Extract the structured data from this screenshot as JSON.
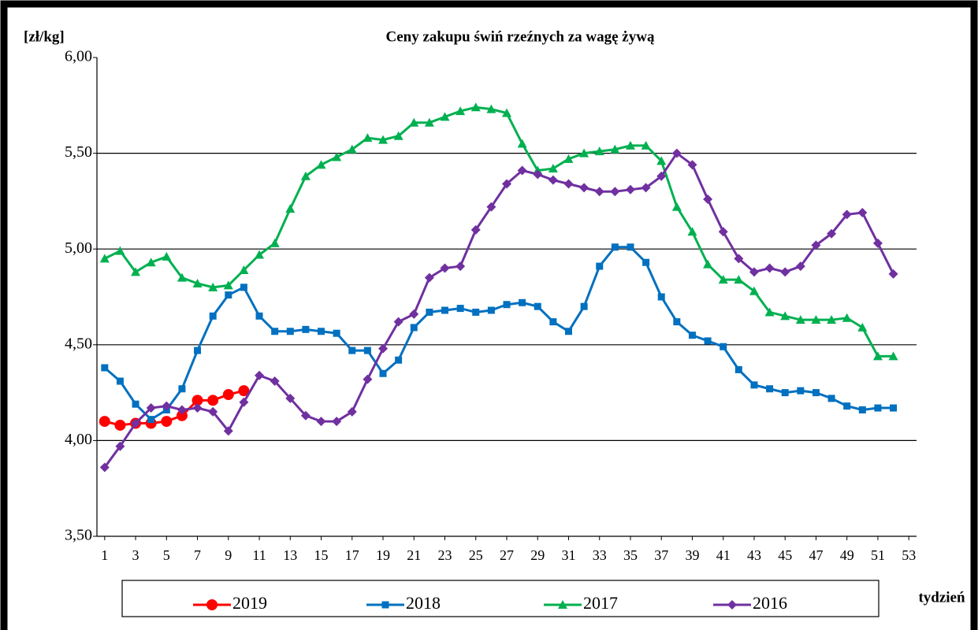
{
  "chart_data": {
    "type": "line",
    "title": "Ceny zakupu świń rzeźnych  za wagę żywą",
    "y_label": "[zł/kg]",
    "x_label": "tydzień",
    "x": [
      1,
      2,
      3,
      4,
      5,
      6,
      7,
      8,
      9,
      10,
      11,
      12,
      13,
      14,
      15,
      16,
      17,
      18,
      19,
      20,
      21,
      22,
      23,
      24,
      25,
      26,
      27,
      28,
      29,
      30,
      31,
      32,
      33,
      34,
      35,
      36,
      37,
      38,
      39,
      40,
      41,
      42,
      43,
      44,
      45,
      46,
      47,
      48,
      49,
      50,
      51,
      52
    ],
    "xlim": [
      0.5,
      53.5
    ],
    "xticks": [
      1,
      3,
      5,
      7,
      9,
      11,
      13,
      15,
      17,
      19,
      21,
      23,
      25,
      27,
      29,
      31,
      33,
      35,
      37,
      39,
      41,
      43,
      45,
      47,
      49,
      51,
      53
    ],
    "ylim": [
      3.5,
      6
    ],
    "yticks": [
      {
        "value": 3.5,
        "label": "3,50"
      },
      {
        "value": 4,
        "label": "4,00"
      },
      {
        "value": 4.5,
        "label": "4,50"
      },
      {
        "value": 5,
        "label": "5,00"
      },
      {
        "value": 5.5,
        "label": "5,50"
      },
      {
        "value": 6,
        "label": "6,00"
      }
    ],
    "grid": true,
    "legend": "bottom",
    "series": [
      {
        "name": "2019",
        "color": "#ff0000",
        "marker": "circle",
        "values": [
          4.1,
          4.08,
          4.09,
          4.09,
          4.1,
          4.13,
          4.21,
          4.21,
          4.24,
          4.26,
          null,
          null,
          null,
          null,
          null,
          null,
          null,
          null,
          null,
          null,
          null,
          null,
          null,
          null,
          null,
          null,
          null,
          null,
          null,
          null,
          null,
          null,
          null,
          null,
          null,
          null,
          null,
          null,
          null,
          null,
          null,
          null,
          null,
          null,
          null,
          null,
          null,
          null,
          null,
          null,
          null,
          null
        ]
      },
      {
        "name": "2018",
        "color": "#0070c0",
        "marker": "square",
        "values": [
          4.38,
          4.31,
          4.19,
          4.11,
          4.16,
          4.27,
          4.47,
          4.65,
          4.76,
          4.8,
          4.65,
          4.57,
          4.57,
          4.58,
          4.57,
          4.56,
          4.47,
          4.47,
          4.35,
          4.42,
          4.59,
          4.67,
          4.68,
          4.69,
          4.67,
          4.68,
          4.71,
          4.72,
          4.7,
          4.62,
          4.57,
          4.7,
          4.91,
          5.01,
          5.01,
          4.93,
          4.75,
          4.62,
          4.55,
          4.52,
          4.49,
          4.37,
          4.29,
          4.27,
          4.25,
          4.26,
          4.25,
          4.22,
          4.18,
          4.16,
          4.17,
          4.17
        ]
      },
      {
        "name": "2017",
        "color": "#00b050",
        "marker": "triangle",
        "values": [
          4.95,
          4.99,
          4.88,
          4.93,
          4.96,
          4.85,
          4.82,
          4.8,
          4.81,
          4.89,
          4.97,
          5.03,
          5.21,
          5.38,
          5.44,
          5.48,
          5.52,
          5.58,
          5.57,
          5.59,
          5.66,
          5.66,
          5.69,
          5.72,
          5.74,
          5.73,
          5.71,
          5.55,
          5.41,
          5.42,
          5.47,
          5.5,
          5.51,
          5.52,
          5.54,
          5.54,
          5.46,
          5.22,
          5.09,
          4.92,
          4.84,
          4.84,
          4.78,
          4.67,
          4.65,
          4.63,
          4.63,
          4.63,
          4.64,
          4.59,
          4.44,
          4.44
        ]
      },
      {
        "name": "2016",
        "color": "#7030a0",
        "marker": "diamond",
        "values": [
          3.86,
          3.97,
          4.09,
          4.17,
          4.18,
          4.16,
          4.17,
          4.15,
          4.05,
          4.2,
          4.34,
          4.31,
          4.22,
          4.13,
          4.1,
          4.1,
          4.15,
          4.32,
          4.48,
          4.62,
          4.66,
          4.85,
          4.9,
          4.91,
          5.1,
          5.22,
          5.34,
          5.41,
          5.39,
          5.36,
          5.34,
          5.32,
          5.3,
          5.3,
          5.31,
          5.32,
          5.38,
          5.5,
          5.44,
          5.26,
          5.09,
          4.95,
          4.88,
          4.9,
          4.88,
          4.91,
          5.02,
          5.08,
          5.18,
          5.19,
          5.03,
          4.87
        ]
      }
    ]
  }
}
